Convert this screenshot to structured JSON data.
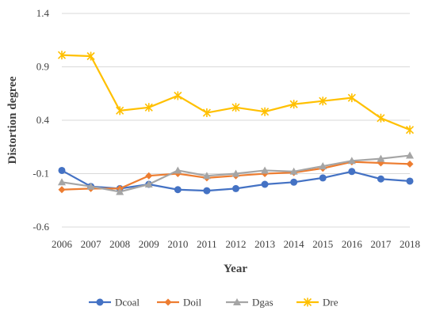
{
  "chart_data": {
    "type": "line",
    "xlabel": "Year",
    "ylabel": "Distortion degree",
    "ylim": [
      -0.6,
      1.4
    ],
    "y_ticks": [
      "1.4",
      "0.9",
      "0.4",
      "-0.1",
      "-0.6"
    ],
    "y_tick_values": [
      1.4,
      0.9,
      0.4,
      -0.1,
      -0.6
    ],
    "categories": [
      "2006",
      "2007",
      "2008",
      "2009",
      "2010",
      "2011",
      "2012",
      "2013",
      "2014",
      "2015",
      "2016",
      "2017",
      "2018"
    ],
    "grid": true,
    "legend_position": "bottom",
    "series": [
      {
        "name": "Dcoal",
        "color": "#4472C4",
        "marker": "circle",
        "values": [
          -0.07,
          -0.22,
          -0.24,
          -0.2,
          -0.25,
          -0.26,
          -0.24,
          -0.2,
          -0.18,
          -0.14,
          -0.08,
          -0.15,
          -0.17
        ]
      },
      {
        "name": "Doil",
        "color": "#ED7D31",
        "marker": "diamond",
        "values": [
          -0.25,
          -0.24,
          -0.24,
          -0.12,
          -0.1,
          -0.14,
          -0.12,
          -0.1,
          -0.09,
          -0.05,
          0.01,
          0.0,
          -0.01
        ]
      },
      {
        "name": "Dgas",
        "color": "#A5A5A5",
        "marker": "triangle",
        "values": [
          -0.18,
          -0.22,
          -0.27,
          -0.2,
          -0.07,
          -0.12,
          -0.1,
          -0.07,
          -0.08,
          -0.03,
          0.02,
          0.04,
          0.07
        ]
      },
      {
        "name": "Dre",
        "color": "#FFC000",
        "marker": "star",
        "values": [
          1.01,
          1.0,
          0.49,
          0.52,
          0.63,
          0.47,
          0.52,
          0.48,
          0.55,
          0.58,
          0.61,
          0.42,
          0.31
        ]
      }
    ]
  }
}
